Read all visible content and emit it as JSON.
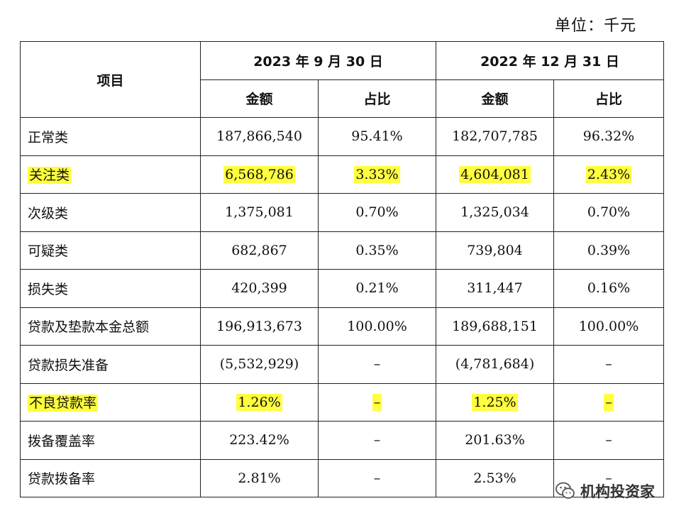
{
  "unit_label": "单位：千元",
  "header": {
    "item": "项目",
    "period1": "2023 年 9 月 30 日",
    "period2": "2022 年 12 月 31 日",
    "amount": "金额",
    "ratio": "占比"
  },
  "rows": [
    {
      "label": "正常类",
      "a1": "187,866,540",
      "r1": "95.41%",
      "a2": "182,707,785",
      "r2": "96.32%",
      "highlight": false
    },
    {
      "label": "关注类",
      "a1": "6,568,786",
      "r1": "3.33%",
      "a2": "4,604,081",
      "r2": "2.43%",
      "highlight": true
    },
    {
      "label": "次级类",
      "a1": "1,375,081",
      "r1": "0.70%",
      "a2": "1,325,034",
      "r2": "0.70%",
      "highlight": false
    },
    {
      "label": "可疑类",
      "a1": "682,867",
      "r1": "0.35%",
      "a2": "739,804",
      "r2": "0.39%",
      "highlight": false
    },
    {
      "label": "损失类",
      "a1": "420,399",
      "r1": "0.21%",
      "a2": "311,447",
      "r2": "0.16%",
      "highlight": false
    },
    {
      "label": "贷款及垫款本金总额",
      "a1": "196,913,673",
      "r1": "100.00%",
      "a2": "189,688,151",
      "r2": "100.00%",
      "highlight": false
    },
    {
      "label": "贷款损失准备",
      "a1": "(5,532,929)",
      "r1": "–",
      "a2": "(4,781,684)",
      "r2": "–",
      "highlight": false
    },
    {
      "label": "不良贷款率",
      "a1": "1.26%",
      "r1": "–",
      "a2": "1.25%",
      "r2": "–",
      "highlight": true
    },
    {
      "label": "拨备覆盖率",
      "a1": "223.42%",
      "r1": "–",
      "a2": "201.63%",
      "r2": "–",
      "highlight": false
    },
    {
      "label": "贷款拨备率",
      "a1": "2.81%",
      "r1": "–",
      "a2": "2.53%",
      "r2": "–",
      "highlight": false
    }
  ],
  "watermark": {
    "text": "机构投资家",
    "icon": "wechat-icon"
  },
  "colors": {
    "highlight": "#ffff3f"
  }
}
